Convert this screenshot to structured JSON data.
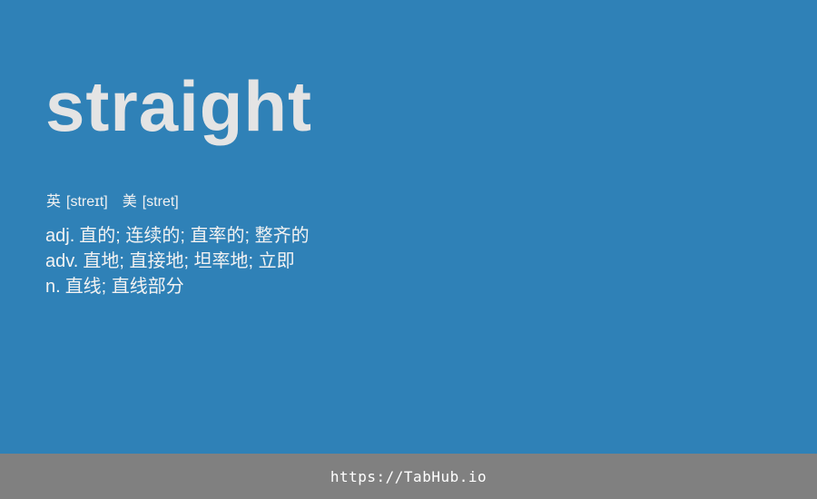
{
  "word": "straight",
  "phonetics": {
    "uk": {
      "label": "英",
      "ipa": "[streɪt]"
    },
    "us": {
      "label": "美",
      "ipa": "[stret]"
    }
  },
  "definitions": [
    {
      "pos": "adj.",
      "meaning": "直的; 连续的; 直率的; 整齐的"
    },
    {
      "pos": "adv.",
      "meaning": "直地; 直接地; 坦率地; 立即"
    },
    {
      "pos": "n.",
      "meaning": "直线; 直线部分"
    }
  ],
  "footer": {
    "link_text": "https://TabHub.io"
  },
  "colors": {
    "background": "#2f81b7",
    "footer": "#808080",
    "word": "#e4e4e4",
    "text": "#f2f2f2"
  }
}
